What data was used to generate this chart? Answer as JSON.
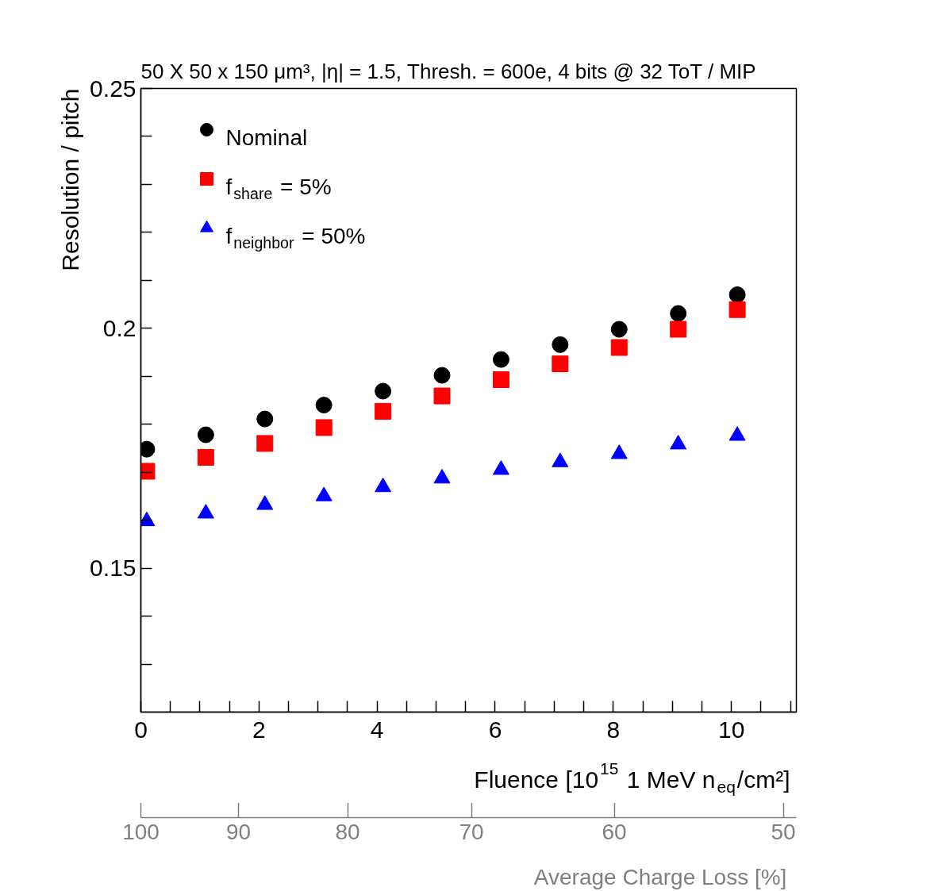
{
  "chart_data": {
    "type": "scatter",
    "title": "50 X 50 x 150 μm³, |η| = 1.5, Thresh. = 600e, 4 bits @ 32 ToT / MIP",
    "xlabel": "Fluence [10$^{15}$ 1 MeV n$_{eq}$/cm²]",
    "ylabel": "Resolution / pitch",
    "x2label": "Average Charge Loss [%]",
    "x": [
      0.1,
      1.1,
      2.1,
      3.1,
      4.1,
      5.1,
      6.1,
      7.1,
      8.1,
      9.1,
      10.1
    ],
    "series": [
      {
        "name": "Nominal",
        "color": "#000000",
        "marker": "circle",
        "values": [
          0.1748,
          0.1778,
          0.1811,
          0.184,
          0.1869,
          0.1902,
          0.1935,
          0.1966,
          0.1998,
          0.2031,
          0.207
        ]
      },
      {
        "name": "f$_{share}$ = 5%",
        "color": "#ff0000",
        "marker": "square",
        "values": [
          0.1702,
          0.1731,
          0.176,
          0.1793,
          0.1827,
          0.1859,
          0.1893,
          0.1926,
          0.196,
          0.1998,
          0.2039
        ]
      },
      {
        "name": "f$_{neighbor}$ = 50%",
        "color": "#0000ff",
        "marker": "triangle",
        "values": [
          0.1598,
          0.1614,
          0.1632,
          0.165,
          0.1669,
          0.1687,
          0.1705,
          0.1721,
          0.1738,
          0.1758,
          0.1776
        ]
      }
    ],
    "xlim": [
      0,
      11.1
    ],
    "ylim": [
      0.12,
      0.25
    ],
    "xticks": [
      0,
      {
        "value": 0.5,
        "label": null
      },
      {
        "value": 1,
        "label": null
      },
      {
        "value": 1.5,
        "label": null
      },
      2,
      {
        "value": 2.5,
        "label": null
      },
      {
        "value": 3,
        "label": null
      },
      {
        "value": 3.5,
        "label": null
      },
      4,
      {
        "value": 4.5,
        "label": null
      },
      {
        "value": 5,
        "label": null
      },
      {
        "value": 5.5,
        "label": null
      },
      6,
      {
        "value": 6.5,
        "label": null
      },
      {
        "value": 7,
        "label": null
      },
      {
        "value": 7.5,
        "label": null
      },
      8,
      {
        "value": 8.5,
        "label": null
      },
      {
        "value": 9,
        "label": null
      },
      {
        "value": 9.5,
        "label": null
      },
      10,
      {
        "value": 10.5,
        "label": null
      },
      {
        "value": 11,
        "label": null
      }
    ],
    "yticks": [
      {
        "value": 0.13,
        "label": null
      },
      {
        "value": 0.14,
        "label": null
      },
      0.15,
      {
        "value": 0.16,
        "label": null
      },
      {
        "value": 0.17,
        "label": null
      },
      {
        "value": 0.18,
        "label": null
      },
      {
        "value": 0.19,
        "label": null
      },
      0.2,
      {
        "value": 0.21,
        "label": null
      },
      {
        "value": 0.22,
        "label": null
      },
      {
        "value": 0.23,
        "label": null
      },
      {
        "value": 0.24,
        "label": null
      },
      0.25
    ],
    "x2lim": [
      100,
      49.3
    ],
    "x2ticks": [
      100,
      90,
      80,
      70,
      60,
      50
    ],
    "log": "x2",
    "legend": "top left",
    "grid": false
  }
}
